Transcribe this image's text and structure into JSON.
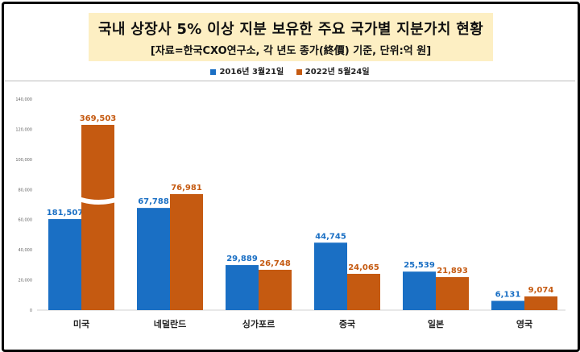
{
  "title": "국내 상장사 5% 이상 지분 보유한 주요 국가별 지분가치 현황",
  "subtitle": "[자료=한국CXO연구소, 각 년도 종가(終價) 기준, 단위:억 원]",
  "legend": [
    {
      "name": "2016년 3월21일",
      "color": "#1a6fc4"
    },
    {
      "name": "2022년 5월24일",
      "color": "#c55a11"
    }
  ],
  "chart_data": {
    "type": "bar",
    "title": "국내 상장사 5% 이상 지분 보유한 주요 국가별 지분가치 현황",
    "subtitle": "[자료=한국CXO연구소, 각 년도 종가(終價) 기준, 단위:억 원]",
    "categories": [
      "미국",
      "네덜란드",
      "싱가포르",
      "중국",
      "일본",
      "영국"
    ],
    "series": [
      {
        "name": "2016년 3월21일",
        "color": "#1a6fc4",
        "values": [
          181507,
          67788,
          29889,
          44745,
          25539,
          6131
        ]
      },
      {
        "name": "2022년 5월24일",
        "color": "#c55a11",
        "values": [
          369503,
          76981,
          26748,
          24065,
          21893,
          9074
        ]
      }
    ],
    "value_labels": [
      [
        "181,507",
        "67,788",
        "29,889",
        "44,745",
        "25,539",
        "6,131"
      ],
      [
        "369,503",
        "76,981",
        "26,748",
        "24,065",
        "21,893",
        "9,074"
      ]
    ],
    "yticks": [
      "0",
      "20,000",
      "40,000",
      "60,000",
      "80,000",
      "100,000",
      "120,000",
      "140,000"
    ],
    "ylim": [
      0,
      140000
    ],
    "axis_break": true,
    "legend_position": "top",
    "grid": false
  }
}
